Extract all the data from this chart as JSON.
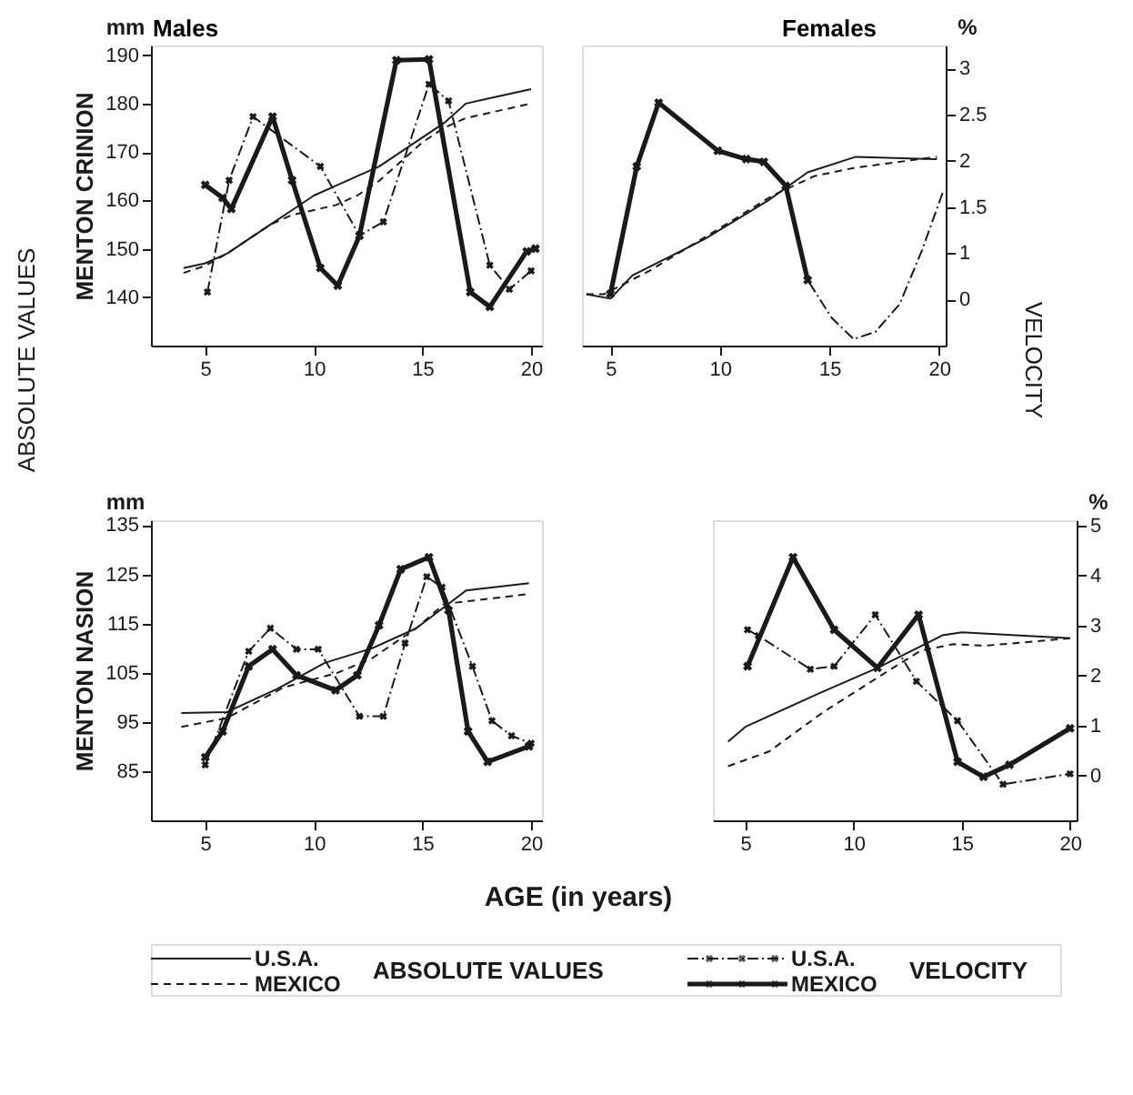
{
  "chart_data": [
    {
      "type": "line",
      "title": "Males",
      "ylabel": "MENTON CRINION",
      "legend_title": "ABSOLUTE VALUES",
      "legend": "bottom",
      "grid": false,
      "tick_labels": "xy",
      "annotations": [
        "mm",
        "ABSOLUTE VALUES"
      ],
      "xlim": [
        2.5,
        20.5
      ],
      "xticks": [
        5,
        10,
        15,
        20
      ],
      "ylim": [
        130,
        192
      ],
      "yticks": [
        140,
        150,
        160,
        170,
        180,
        190
      ],
      "y2lim": [
        0,
        3.25
      ],
      "series": [
        {
          "name": "U.S.A.",
          "color": "#1a1a1a",
          "line_style": "solid",
          "marker": "none",
          "x": [
            4,
            5,
            6,
            7,
            8,
            9,
            10,
            11,
            12,
            13,
            14,
            15,
            16,
            17,
            18,
            19,
            20
          ],
          "values": [
            146,
            147,
            149,
            152,
            155,
            158,
            161,
            163,
            165,
            167,
            170,
            173,
            176,
            180,
            181,
            182,
            183
          ]
        },
        {
          "name": "MEXICO",
          "color": "#1a1a1a",
          "line_style": "dashed",
          "marker": "none",
          "x": [
            4,
            5,
            6,
            7,
            8,
            9,
            10,
            11,
            12,
            13,
            14,
            15,
            16,
            17,
            18,
            19,
            20
          ],
          "values": [
            145,
            146.5,
            149,
            152,
            155,
            157,
            158,
            159,
            161,
            164,
            168,
            172,
            175,
            177,
            178,
            179,
            180
          ]
        },
        {
          "name": "U.S.A.",
          "color": "#1a1a1a",
          "line_style": "dashdot",
          "marker": "cross",
          "axis": "y2",
          "x": [
            5.1,
            6.1,
            7.2,
            10.3,
            12.1,
            13.2,
            15.3,
            16.2,
            18.1,
            19,
            20
          ],
          "values": [
            0.58,
            1.79,
            2.48,
            1.94,
            1.19,
            1.34,
            2.83,
            2.65,
            0.87,
            0.61,
            0.81
          ]
        },
        {
          "name": "MEXICO",
          "color": "#1a1a1a",
          "line_style": "solid",
          "marker": "cross",
          "axis": "y2",
          "x": [
            5,
            5.8,
            6.2,
            8.1,
            9,
            10.3,
            11.1,
            12.1,
            13.8,
            15.3,
            17.2,
            18.1,
            19.8,
            20.2
          ],
          "values": [
            1.74,
            1.6,
            1.48,
            2.48,
            1.79,
            0.84,
            0.65,
            1.19,
            3.09,
            3.1,
            0.58,
            0.42,
            1.02,
            1.05
          ]
        }
      ]
    },
    {
      "type": "line",
      "title": "Females",
      "legend_title": "VELOCITY",
      "grid": false,
      "tick_labels": "xy2",
      "annotations": [
        "%",
        "VELOCITY"
      ],
      "xlim": [
        3.7,
        20.3
      ],
      "xticks": [
        5,
        10,
        15,
        20
      ],
      "ylim": [
        130,
        192
      ],
      "y2lim": [
        0,
        3.25
      ],
      "y2ticks": [
        {
          "value": 0.5,
          "label": "0"
        },
        1,
        1.5,
        2,
        2.5,
        3
      ],
      "series": [
        {
          "color": "#1a1a1a",
          "line_style": "solid",
          "marker": "none",
          "x": [
            3.9,
            5,
            6,
            9.3,
            12.2,
            14,
            16.2,
            19.9
          ],
          "values": [
            140.6,
            139.7,
            144.5,
            152,
            160,
            165.8,
            169,
            168.5
          ]
        },
        {
          "color": "#1a1a1a",
          "line_style": "dashed",
          "marker": "none",
          "x": [
            3.9,
            4.7,
            6.8,
            9.9,
            12.4,
            14.3,
            16.1,
            19.9
          ],
          "values": [
            140.6,
            140.6,
            145.5,
            154,
            161,
            165,
            166.7,
            169
          ]
        },
        {
          "color": "#1a1a1a",
          "line_style": "dashdot",
          "marker": "none",
          "axis": "y2",
          "x": [
            13,
            14,
            15.1,
            16.1,
            17.1,
            18.2,
            19.2,
            20.2
          ],
          "values": [
            1.73,
            0.71,
            0.3,
            0.07,
            0.15,
            0.45,
            1.02,
            1.68
          ]
        },
        {
          "color": "#1a1a1a",
          "line_style": "solid",
          "marker": "cross",
          "axis": "y2",
          "x": [
            5,
            6.2,
            7.2,
            9.9,
            11.2,
            12,
            13,
            14
          ],
          "values": [
            0.56,
            1.94,
            2.63,
            2.11,
            2.02,
            1.99,
            1.73,
            0.71
          ]
        }
      ]
    },
    {
      "type": "line",
      "ylabel": "MENTON NASION",
      "xlabel": "AGE (in years)",
      "grid": false,
      "tick_labels": "xy",
      "annotations": [
        "mm"
      ],
      "xlim": [
        2.5,
        20.5
      ],
      "xticks": [
        5,
        10,
        15,
        20
      ],
      "ylim": [
        75,
        136
      ],
      "yticks": [
        85,
        95,
        105,
        115,
        125,
        135
      ],
      "y2lim": [
        -0.9,
        5.1
      ],
      "series": [
        {
          "color": "#1a1a1a",
          "line_style": "solid",
          "marker": "none",
          "x": [
            3.9,
            6,
            8.3,
            10.5,
            12.7,
            14.7,
            17,
            19.9
          ],
          "values": [
            96.8,
            97,
            101.7,
            107,
            110,
            114,
            121.7,
            123.2
          ]
        },
        {
          "color": "#1a1a1a",
          "line_style": "dashed",
          "marker": "none",
          "x": [
            3.9,
            6,
            8.6,
            11.1,
            12.7,
            14.7,
            16,
            17.6,
            19.9
          ],
          "values": [
            94,
            95.8,
            102,
            105,
            108,
            114,
            119,
            119.8,
            121
          ]
        },
        {
          "color": "#1a1a1a",
          "line_style": "dashdot",
          "marker": "cross",
          "axis": "y2",
          "x": [
            5,
            7,
            8,
            9.2,
            10.2,
            12.1,
            13.2,
            14.2,
            15.2,
            15.9,
            17.3,
            18.2,
            19.1,
            20
          ],
          "values": [
            0.21,
            2.48,
            2.94,
            2.52,
            2.52,
            1.18,
            1.18,
            2.64,
            3.97,
            3.76,
            2.18,
            1.09,
            0.79,
            0.64
          ]
        },
        {
          "color": "#1a1a1a",
          "line_style": "solid",
          "marker": "cross",
          "axis": "y2",
          "x": [
            5,
            5.8,
            7,
            8.1,
            9.2,
            11,
            12,
            13,
            14,
            15.3,
            16.2,
            17.1,
            18,
            19.9
          ],
          "values": [
            0.36,
            0.88,
            2.18,
            2.52,
            2.0,
            1.7,
            2.0,
            3.0,
            4.12,
            4.36,
            3.3,
            0.88,
            0.27,
            0.58
          ]
        }
      ]
    },
    {
      "type": "line",
      "grid": false,
      "tick_labels": "xy2",
      "annotations": [
        "%"
      ],
      "xlim": [
        3.5,
        20.3
      ],
      "xticks": [
        5,
        10,
        15,
        20
      ],
      "ylim": [
        75,
        136
      ],
      "y2lim": [
        -0.9,
        5.1
      ],
      "y2ticks": [
        0,
        1,
        2,
        3,
        4,
        5
      ],
      "series": [
        {
          "color": "#1a1a1a",
          "line_style": "solid",
          "marker": "none",
          "x": [
            4.2,
            5,
            8.5,
            11.1,
            14.1,
            15,
            20
          ],
          "values": [
            91,
            94,
            101,
            106,
            112.6,
            113.2,
            112
          ]
        },
        {
          "color": "#1a1a1a",
          "line_style": "dashed",
          "marker": "none",
          "x": [
            4.2,
            6.1,
            8.6,
            11.1,
            13.1,
            14.6,
            16.1,
            20
          ],
          "values": [
            86,
            89,
            97,
            104,
            109.5,
            110.8,
            110.5,
            112
          ]
        },
        {
          "color": "#1a1a1a",
          "line_style": "dashdot",
          "marker": "cross",
          "axis": "y2",
          "x": [
            5.1,
            5.6,
            8,
            9.1,
            11,
            12.9,
            14.8,
            16.9,
            20
          ],
          "values": [
            2.91,
            2.79,
            2.12,
            2.18,
            3.21,
            1.88,
            1.09,
            -0.18,
            0.03
          ]
        },
        {
          "color": "#1a1a1a",
          "line_style": "solid",
          "marker": "cross",
          "axis": "y2",
          "x": [
            5.1,
            7.2,
            9.1,
            11.1,
            13,
            14.8,
            16,
            17.2,
            20
          ],
          "values": [
            2.18,
            4.36,
            2.91,
            2.15,
            3.21,
            0.27,
            -0.03,
            0.21,
            0.94
          ]
        }
      ]
    }
  ]
}
